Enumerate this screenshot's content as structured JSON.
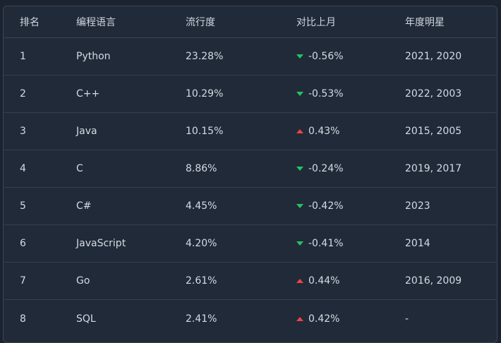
{
  "headers": {
    "rank": "排名",
    "language": "编程语言",
    "popularity": "流行度",
    "change": "对比上月",
    "star_years": "年度明星"
  },
  "rows": [
    {
      "rank": "1",
      "language": "Python",
      "popularity": "23.28%",
      "change": "-0.56%",
      "direction": "down",
      "star_years": "2021, 2020"
    },
    {
      "rank": "2",
      "language": "C++",
      "popularity": "10.29%",
      "change": "-0.53%",
      "direction": "down",
      "star_years": "2022, 2003"
    },
    {
      "rank": "3",
      "language": "Java",
      "popularity": "10.15%",
      "change": "0.43%",
      "direction": "up",
      "star_years": "2015, 2005"
    },
    {
      "rank": "4",
      "language": "C",
      "popularity": "8.86%",
      "change": "-0.24%",
      "direction": "down",
      "star_years": "2019, 2017"
    },
    {
      "rank": "5",
      "language": "C#",
      "popularity": "4.45%",
      "change": "-0.42%",
      "direction": "down",
      "star_years": "2023"
    },
    {
      "rank": "6",
      "language": "JavaScript",
      "popularity": "4.20%",
      "change": "-0.41%",
      "direction": "down",
      "star_years": "2014"
    },
    {
      "rank": "7",
      "language": "Go",
      "popularity": "2.61%",
      "change": "0.44%",
      "direction": "up",
      "star_years": "2016, 2009"
    },
    {
      "rank": "8",
      "language": "SQL",
      "popularity": "2.41%",
      "change": "0.42%",
      "direction": "up",
      "star_years": "-"
    }
  ],
  "colors": {
    "up": "#ef4444",
    "down": "#22c55e"
  },
  "icons": {
    "up": "caret-up-icon",
    "down": "caret-down-icon"
  }
}
